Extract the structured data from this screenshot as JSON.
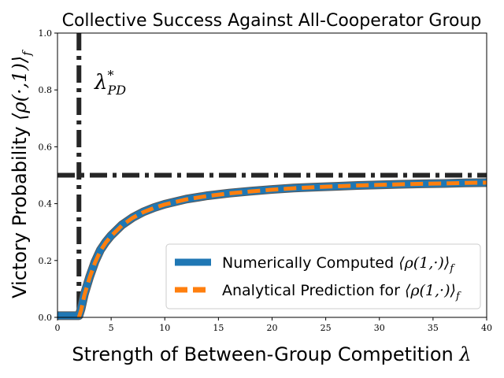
{
  "chart_data": {
    "type": "line",
    "title": "Collective Success Against All-Cooperator Group",
    "xlabel": "Strength of Between-Group Competition λ",
    "ylabel": "Victory Probability ⟨ρ(·,1)⟩_f",
    "xlim": [
      0,
      40
    ],
    "ylim": [
      0,
      1
    ],
    "xticks": [
      0,
      5,
      10,
      15,
      20,
      25,
      30,
      35,
      40
    ],
    "yticks": [
      0.0,
      0.2,
      0.4,
      0.6,
      0.8,
      1.0
    ],
    "xtick_labels": [
      "0",
      "5",
      "10",
      "15",
      "20",
      "25",
      "30",
      "35",
      "40"
    ],
    "ytick_labels": [
      "0.0",
      "0.2",
      "0.4",
      "0.6",
      "0.8",
      "1.0"
    ],
    "grid": false,
    "legend_position": "lower-right",
    "threshold_lambda": 2.0,
    "reference_lines": [
      {
        "orientation": "vertical",
        "x": 2.0,
        "label": "λ*_PD",
        "label_main": "λ",
        "label_sup": "*",
        "label_sub": "PD",
        "color": "#262626",
        "style": "dashdot"
      },
      {
        "orientation": "horizontal",
        "y": 0.5,
        "color": "#262626",
        "style": "dashdot"
      }
    ],
    "series": [
      {
        "name": "Numerically Computed ⟨ρ(1,·)⟩_f",
        "color": "#1f77b4",
        "style": "solid",
        "x": [
          0,
          1,
          2,
          2.2,
          2.5,
          3,
          3.5,
          4,
          4.5,
          5,
          6,
          7,
          8,
          9,
          10,
          12,
          14,
          16,
          18,
          20,
          22,
          24,
          26,
          28,
          30,
          32,
          34,
          36,
          38,
          40
        ],
        "y": [
          0.006,
          0.006,
          0.006,
          0.03,
          0.081,
          0.143,
          0.196,
          0.237,
          0.265,
          0.288,
          0.325,
          0.351,
          0.371,
          0.386,
          0.398,
          0.416,
          0.428,
          0.437,
          0.444,
          0.45,
          0.455,
          0.458,
          0.461,
          0.464,
          0.466,
          0.468,
          0.47,
          0.471,
          0.473,
          0.474
        ]
      },
      {
        "name": "Analytical Prediction for ⟨ρ(1,·)⟩_f",
        "color": "#ff7f0e",
        "style": "dashed",
        "x": [
          2,
          2.2,
          2.5,
          3,
          3.5,
          4,
          4.5,
          5,
          6,
          7,
          8,
          9,
          10,
          12,
          14,
          16,
          18,
          20,
          22,
          24,
          26,
          28,
          30,
          32,
          34,
          36,
          38,
          40
        ],
        "y": [
          0.0,
          0.025,
          0.077,
          0.14,
          0.193,
          0.234,
          0.263,
          0.286,
          0.323,
          0.35,
          0.37,
          0.385,
          0.397,
          0.415,
          0.427,
          0.436,
          0.443,
          0.449,
          0.454,
          0.458,
          0.461,
          0.464,
          0.466,
          0.468,
          0.47,
          0.471,
          0.473,
          0.474
        ]
      }
    ],
    "legend": [
      {
        "text": "Numerically Computed ",
        "math": "⟨ρ(1,·)⟩",
        "sub": "f"
      },
      {
        "text": "Analytical Prediction for ",
        "math": "⟨ρ(1,·)⟩",
        "sub": "f"
      }
    ]
  }
}
